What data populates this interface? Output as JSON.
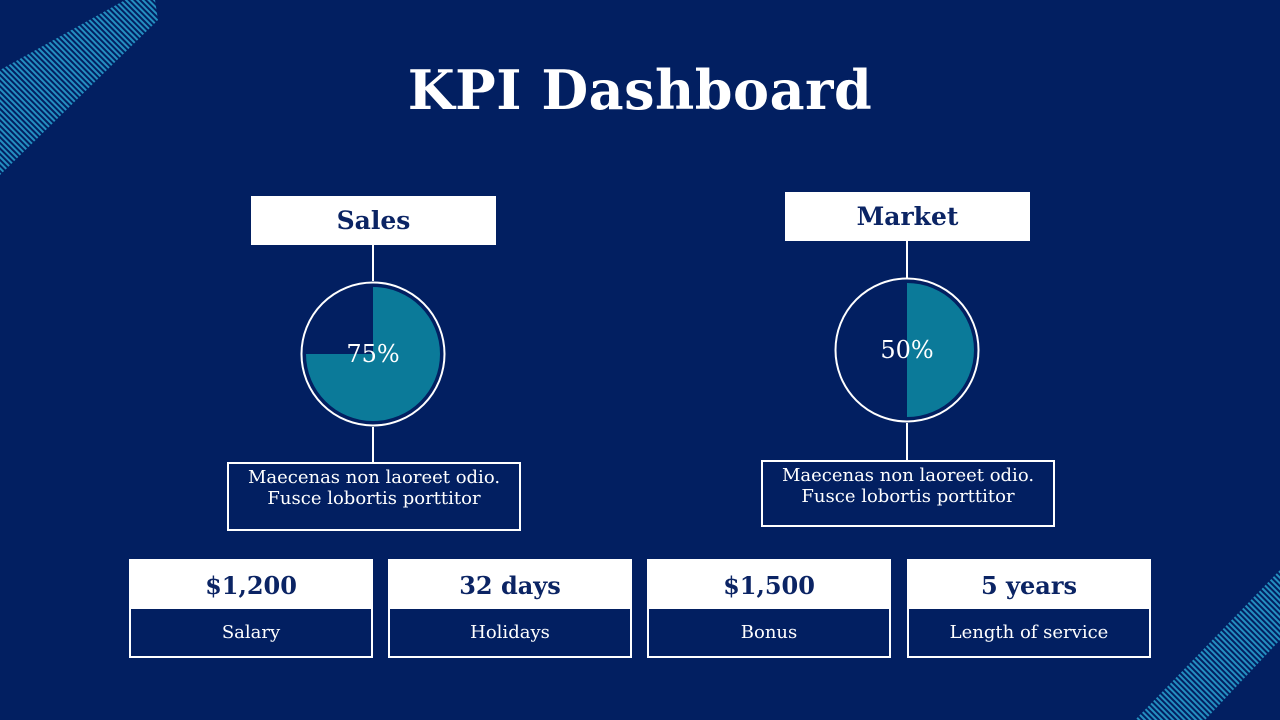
{
  "title": "KPI Dashboard",
  "colors": {
    "background": "#021f61",
    "accent": "#0b7a99",
    "text_dark": "#0b2464",
    "stripe": "#2aa3d1"
  },
  "panels": [
    {
      "label": "Sales",
      "percent_text": "75%",
      "fill_fraction": 0.75,
      "description_line1": "Maecenas non laoreet odio.",
      "description_line2": "Fusce lobortis porttitor"
    },
    {
      "label": "Market",
      "percent_text": "50%",
      "fill_fraction": 0.5,
      "description_line1": "Maecenas non laoreet odio.",
      "description_line2": "Fusce lobortis porttitor"
    }
  ],
  "kpis": [
    {
      "value": "$1,200",
      "label": "Salary"
    },
    {
      "value": "32 days",
      "label": "Holidays"
    },
    {
      "value": "$1,500",
      "label": "Bonus"
    },
    {
      "value": "5 years",
      "label": "Length of service"
    }
  ]
}
